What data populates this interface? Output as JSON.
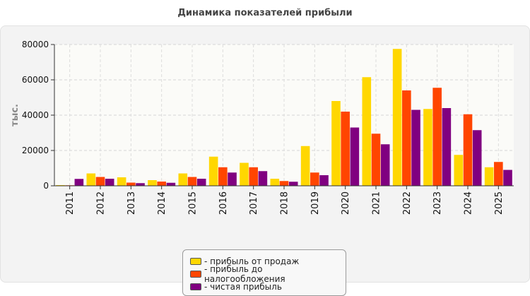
{
  "chart_data": {
    "type": "bar",
    "title": "Динамика показателей прибыли",
    "ylabel": "тыс.",
    "xlabel": "",
    "ylim": [
      0,
      80000
    ],
    "yticks": [
      "0",
      "20000",
      "40000",
      "60000",
      "80000"
    ],
    "grid": true,
    "legend_position": "bottom",
    "categories": [
      "2011",
      "2012",
      "2013",
      "2014",
      "2015",
      "2016",
      "2017",
      "2018",
      "2019",
      "2020",
      "2021",
      "2022",
      "2023",
      "2024",
      "2025"
    ],
    "series": [
      {
        "name": "прибыль от продаж",
        "color": "#FFD700",
        "values": [
          400,
          7000,
          4800,
          3200,
          7000,
          16500,
          13000,
          4000,
          22500,
          48000,
          61500,
          77500,
          43500,
          17500,
          10500
        ]
      },
      {
        "name": "прибыль до налогообложения",
        "color": "#FF4500",
        "values": [
          300,
          5000,
          1800,
          2400,
          5000,
          10500,
          10500,
          2700,
          7500,
          42000,
          29500,
          54000,
          55500,
          40500,
          13500
        ]
      },
      {
        "name": "чистая прибыль",
        "color": "#800080",
        "values": [
          3900,
          4000,
          1500,
          1700,
          4000,
          7500,
          8300,
          2300,
          6000,
          33000,
          23500,
          43000,
          44000,
          31500,
          9000
        ]
      }
    ]
  },
  "legend": {
    "items": [
      {
        "label": "- прибыль от продаж"
      },
      {
        "label": "- прибыль до налогообложения"
      },
      {
        "label": "- чистая прибыль"
      }
    ]
  }
}
